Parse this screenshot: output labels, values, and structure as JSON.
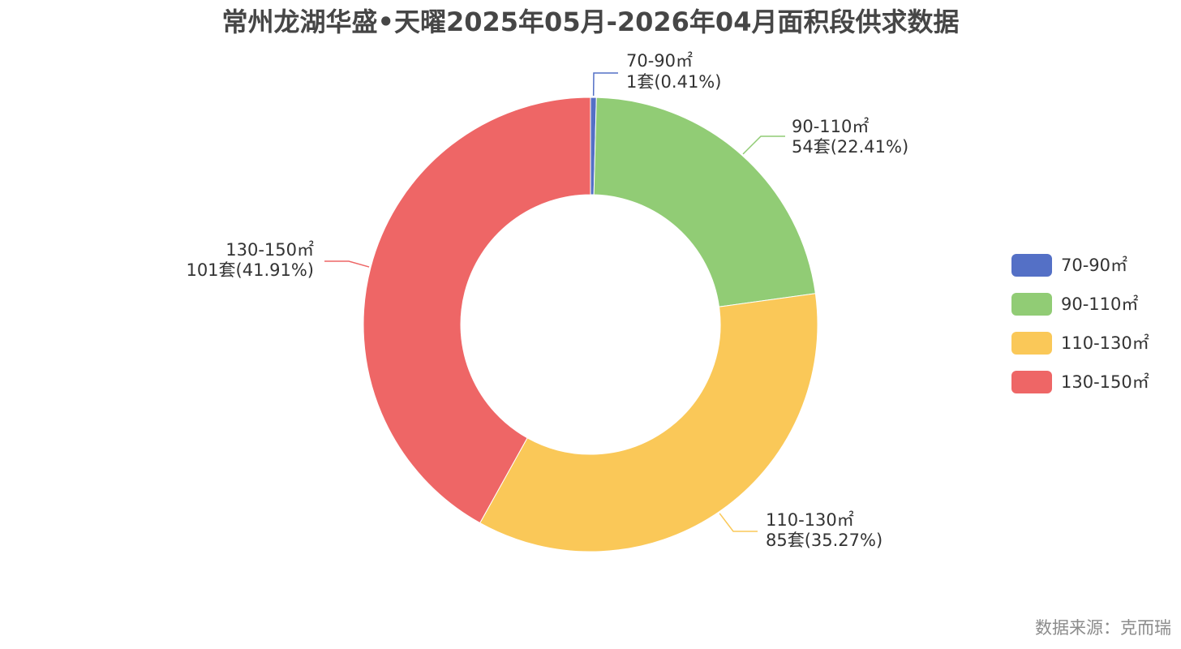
{
  "chart_data": {
    "type": "pie",
    "subtype": "donut",
    "title": "常州龙湖华盛•天曜2025年05月-2026年04月面积段供求数据",
    "unit": "套",
    "slices": [
      {
        "name": "70-90㎡",
        "value": 1,
        "percent": "0.41%",
        "label": "1套(0.41%)",
        "color": "#5470c6"
      },
      {
        "name": "90-110㎡",
        "value": 54,
        "percent": "22.41%",
        "label": "54套(22.41%)",
        "color": "#91cc75"
      },
      {
        "name": "110-130㎡",
        "value": 85,
        "percent": "35.27%",
        "label": "85套(35.27%)",
        "color": "#fac858"
      },
      {
        "name": "130-150㎡",
        "value": 101,
        "percent": "41.91%",
        "label": "101套(41.91%)",
        "color": "#ee6666"
      }
    ],
    "legend": {
      "position": "right",
      "items": [
        "70-90㎡",
        "90-110㎡",
        "110-130㎡",
        "130-150㎡"
      ]
    }
  },
  "source_text": "数据来源：克而瑞"
}
